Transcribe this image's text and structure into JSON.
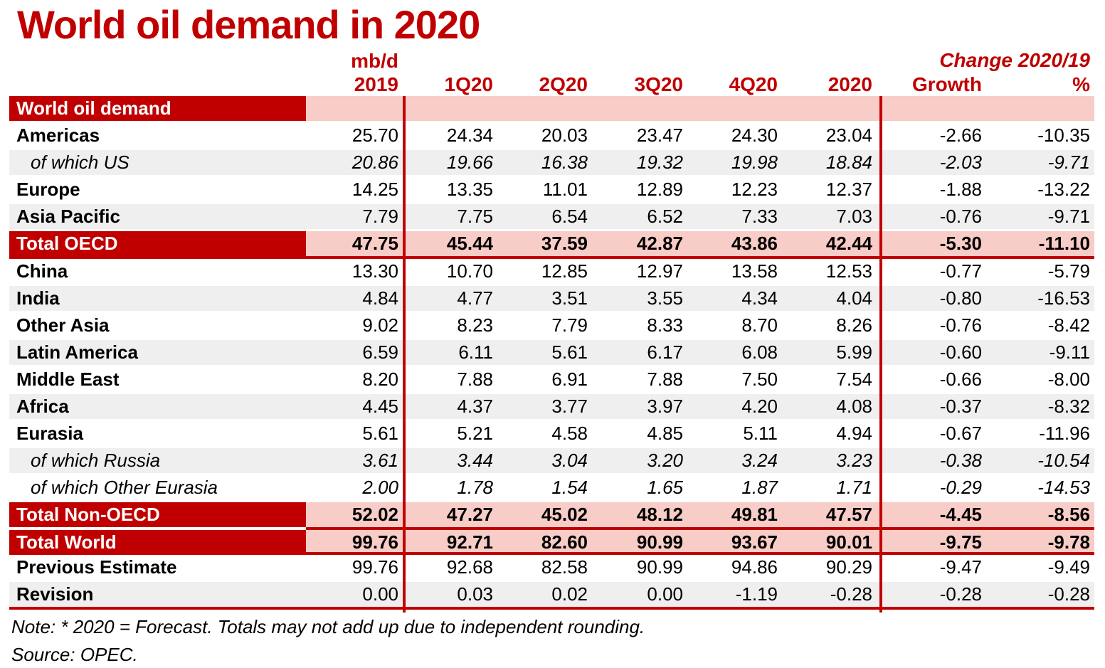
{
  "colors": {
    "accent_red": "#C00000",
    "highlight_pink": "#F8CCC7",
    "zebra_gray": "#EFEFEF",
    "text_black": "#000000",
    "bar_text_white": "#FFFFFF"
  },
  "chart_data": {
    "type": "table",
    "title": "World oil demand in 2020",
    "unit": "mb/d",
    "change_header": "Change 2020/19",
    "columns": [
      "2019",
      "1Q20",
      "2Q20",
      "3Q20",
      "4Q20",
      "2020",
      "Growth",
      "%"
    ],
    "rows": [
      {
        "label": "World oil demand",
        "variant": "section",
        "shade": false,
        "values": [
          "",
          "",
          "",
          "",
          "",
          "",
          "",
          ""
        ]
      },
      {
        "label": "Americas",
        "variant": "region",
        "shade": false,
        "values": [
          "25.70",
          "24.34",
          "20.03",
          "23.47",
          "24.30",
          "23.04",
          "-2.66",
          "-10.35"
        ]
      },
      {
        "label": "of which US",
        "variant": "ofwhich",
        "shade": true,
        "values": [
          "20.86",
          "19.66",
          "16.38",
          "19.32",
          "19.98",
          "18.84",
          "-2.03",
          "-9.71"
        ]
      },
      {
        "label": "Europe",
        "variant": "region",
        "shade": false,
        "values": [
          "14.25",
          "13.35",
          "11.01",
          "12.89",
          "12.23",
          "12.37",
          "-1.88",
          "-13.22"
        ]
      },
      {
        "label": "Asia Pacific",
        "variant": "region",
        "shade": true,
        "values": [
          "7.79",
          "7.75",
          "6.54",
          "6.52",
          "7.33",
          "7.03",
          "-0.76",
          "-9.71"
        ]
      },
      {
        "label": "Total OECD",
        "variant": "total",
        "shade": false,
        "separator_below": true,
        "values": [
          "47.75",
          "45.44",
          "37.59",
          "42.87",
          "43.86",
          "42.44",
          "-5.30",
          "-11.10"
        ]
      },
      {
        "label": "China",
        "variant": "region",
        "shade": false,
        "values": [
          "13.30",
          "10.70",
          "12.85",
          "12.97",
          "13.58",
          "12.53",
          "-0.77",
          "-5.79"
        ]
      },
      {
        "label": "India",
        "variant": "region",
        "shade": true,
        "values": [
          "4.84",
          "4.77",
          "3.51",
          "3.55",
          "4.34",
          "4.04",
          "-0.80",
          "-16.53"
        ]
      },
      {
        "label": "Other Asia",
        "variant": "region",
        "shade": false,
        "values": [
          "9.02",
          "8.23",
          "7.79",
          "8.33",
          "8.70",
          "8.26",
          "-0.76",
          "-8.42"
        ]
      },
      {
        "label": "Latin America",
        "variant": "region",
        "shade": true,
        "values": [
          "6.59",
          "6.11",
          "5.61",
          "6.17",
          "6.08",
          "5.99",
          "-0.60",
          "-9.11"
        ]
      },
      {
        "label": "Middle East",
        "variant": "region",
        "shade": false,
        "values": [
          "8.20",
          "7.88",
          "6.91",
          "7.88",
          "7.50",
          "7.54",
          "-0.66",
          "-8.00"
        ]
      },
      {
        "label": "Africa",
        "variant": "region",
        "shade": true,
        "values": [
          "4.45",
          "4.37",
          "3.77",
          "3.97",
          "4.20",
          "4.08",
          "-0.37",
          "-8.32"
        ]
      },
      {
        "label": "Eurasia",
        "variant": "region",
        "shade": false,
        "values": [
          "5.61",
          "5.21",
          "4.58",
          "4.85",
          "5.11",
          "4.94",
          "-0.67",
          "-11.96"
        ]
      },
      {
        "label": "of which Russia",
        "variant": "ofwhich",
        "shade": true,
        "values": [
          "3.61",
          "3.44",
          "3.04",
          "3.20",
          "3.24",
          "3.23",
          "-0.38",
          "-10.54"
        ]
      },
      {
        "label": "of which Other Eurasia",
        "variant": "ofwhich",
        "shade": false,
        "values": [
          "2.00",
          "1.78",
          "1.54",
          "1.65",
          "1.87",
          "1.71",
          "-0.29",
          "-14.53"
        ]
      },
      {
        "label": "Total Non-OECD",
        "variant": "total",
        "shade": false,
        "gap_below": false,
        "values": [
          "52.02",
          "47.27",
          "45.02",
          "48.12",
          "49.81",
          "47.57",
          "-4.45",
          "-8.56"
        ]
      },
      {
        "label": "Total World",
        "variant": "total",
        "shade": false,
        "split_top": true,
        "separator_below": true,
        "values": [
          "99.76",
          "92.71",
          "82.60",
          "90.99",
          "93.67",
          "90.01",
          "-9.75",
          "-9.78"
        ]
      },
      {
        "label": "Previous Estimate",
        "variant": "region",
        "shade": false,
        "values": [
          "99.76",
          "92.68",
          "82.58",
          "90.99",
          "94.86",
          "90.29",
          "-9.47",
          "-9.49"
        ]
      },
      {
        "label": "Revision",
        "variant": "region",
        "shade": true,
        "separator_below": true,
        "values": [
          "0.00",
          "0.03",
          "0.02",
          "0.00",
          "-1.19",
          "-0.28",
          "-0.28",
          "-0.28"
        ]
      }
    ],
    "note": "Note: * 2020 = Forecast. Totals may not add up due to independent rounding.",
    "source": "Source: OPEC."
  }
}
